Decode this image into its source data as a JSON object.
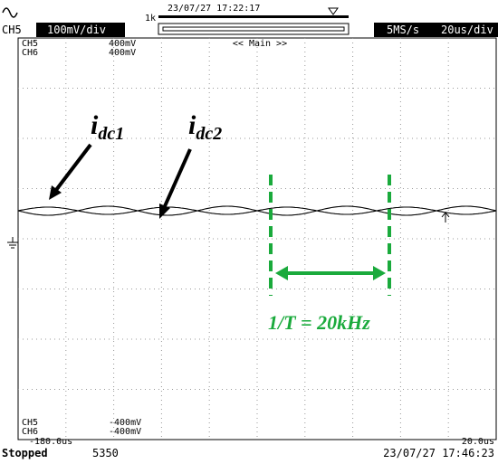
{
  "header": {
    "channel": "CH5",
    "scale": "100mV/div",
    "timestamp": "23/07/27 17:22:17",
    "zoom": "1k",
    "sample_rate": "5MS/s",
    "time_scale": "20us/div"
  },
  "display": {
    "view": "<< Main >>",
    "top_labels": [
      {
        "channel": "CH5",
        "value": "400mV"
      },
      {
        "channel": "CH6",
        "value": "400mV"
      }
    ],
    "bottom_labels": [
      {
        "channel": "CH5",
        "value": "-400mV"
      },
      {
        "channel": "CH6",
        "value": "-400mV"
      }
    ],
    "time_start": "-180.0us",
    "time_end": "20.0us"
  },
  "annotations": {
    "trace1": {
      "main": "i",
      "sub": "dc1"
    },
    "trace2": {
      "main": "i",
      "sub": "dc2"
    },
    "period": "1/T = 20kHz"
  },
  "status": {
    "state": "Stopped",
    "count": "5350",
    "timestamp": "23/07/27 17:46:23"
  }
}
